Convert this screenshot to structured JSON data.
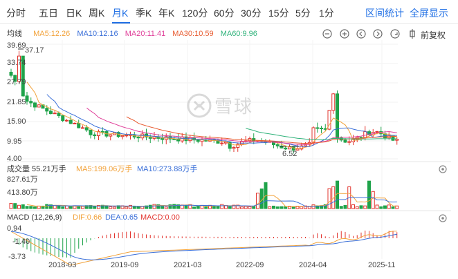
{
  "tabs": [
    {
      "label": "分时",
      "active": false
    },
    {
      "label": "五日",
      "active": false
    },
    {
      "label": "日K",
      "active": false
    },
    {
      "label": "周K",
      "active": false
    },
    {
      "label": "月K",
      "active": true
    },
    {
      "label": "季K",
      "active": false
    },
    {
      "label": "年K",
      "active": false
    },
    {
      "label": "120分",
      "active": false
    },
    {
      "label": "60分",
      "active": false
    },
    {
      "label": "30分",
      "active": false
    },
    {
      "label": "15分",
      "active": false
    },
    {
      "label": "5分",
      "active": false
    },
    {
      "label": "1分",
      "active": false
    }
  ],
  "actions": {
    "interval_stats": "区间统计",
    "fullscreen": "全屏显示"
  },
  "ma_row": {
    "label": "均线",
    "items": [
      {
        "text": "MA5:12.26",
        "color": "#f2a23a"
      },
      {
        "text": "MA10:12.16",
        "color": "#3a6fd8"
      },
      {
        "text": "MA20:11.41",
        "color": "#e0409a"
      },
      {
        "text": "MA30:10.59",
        "color": "#e85a2f"
      },
      {
        "text": "MA60:9.96",
        "color": "#2fb27a"
      }
    ]
  },
  "controls": {
    "fuquan": "前复权"
  },
  "price_axis": [
    "39.69",
    "33.74",
    "27.79",
    "21.85",
    "15.90",
    "9.95",
    "4.00"
  ],
  "annotations": {
    "high": "37.17",
    "low": "6.52"
  },
  "volume": {
    "title": "成交量 55.21万手",
    "ma5": "MA5:199.06万手",
    "ma10": "MA10:273.88万手",
    "ma5_color": "#f2a23a",
    "ma10_color": "#3a6fd8",
    "axis": [
      "827.61万",
      "413.80万"
    ]
  },
  "macd": {
    "title": "MACD (12,26,9)",
    "dif": "DIF:0.66",
    "dea": "DEA:0.65",
    "macd": "MACD:0.00",
    "dif_color": "#f2a23a",
    "dea_color": "#3a6fd8",
    "macd_color": "#e2342e",
    "axis": [
      "0.94",
      "-1.40",
      "-3.73"
    ]
  },
  "x_axis": [
    "2018-03",
    "2019-09",
    "2021-03",
    "2022-09",
    "2024-04",
    "2025-11"
  ],
  "watermark": "雪球",
  "colors": {
    "up": "#e2342e",
    "down": "#1fa34a",
    "accent": "#1f6fe5"
  }
}
